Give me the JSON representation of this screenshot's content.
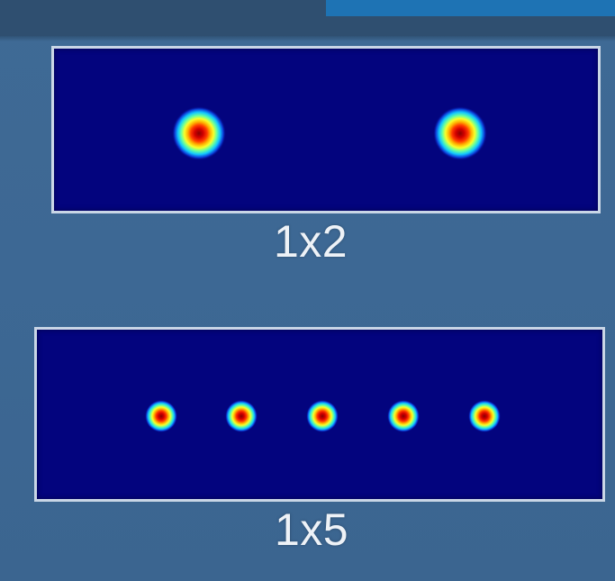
{
  "colors": {
    "background": "#3d6894",
    "panel_fill": "#03047e",
    "panel_border": "#c9d6e6",
    "caption": "#eef2f7",
    "topbar": "#2f4f70",
    "topbar_accent": "#1e73b4"
  },
  "diagrams": [
    {
      "caption": "1x2",
      "spot_count": 2
    },
    {
      "caption": "1x5",
      "spot_count": 5
    }
  ]
}
